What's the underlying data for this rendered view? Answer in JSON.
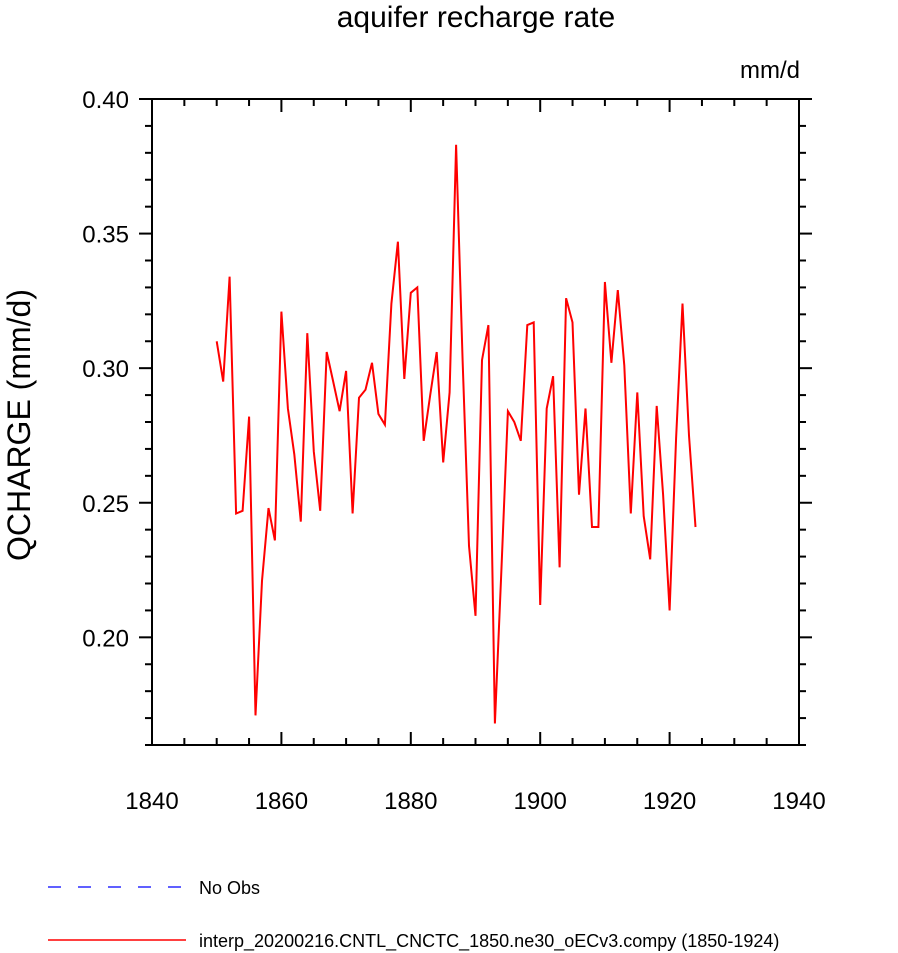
{
  "chart_data": {
    "type": "line",
    "title": "aquifer recharge rate",
    "units": "mm/d",
    "xlabel": "",
    "ylabel": "QCHARGE  (mm/d)",
    "xlim": [
      1840,
      1940
    ],
    "ylim": [
      0.16,
      0.4
    ],
    "xticks": [
      1840,
      1860,
      1880,
      1900,
      1920,
      1940
    ],
    "xtick_labels": [
      "1840",
      "1860",
      "1880",
      "1900",
      "1920",
      "1940"
    ],
    "yticks": [
      0.2,
      0.25,
      0.3,
      0.35,
      0.4
    ],
    "ytick_labels": [
      "0.20",
      "0.25",
      "0.30",
      "0.35",
      "0.40"
    ],
    "grid": false,
    "legend_position": "bottom",
    "legend": [
      {
        "label": "No Obs",
        "color": "#0000ff",
        "style": "dashed"
      },
      {
        "label": "interp_20200216.CNTL_CNCTC_1850.ne30_oECv3.compy (1850-1924)",
        "color": "#ff0000",
        "style": "solid"
      }
    ],
    "series": [
      {
        "name": "interp_20200216.CNTL_CNCTC_1850.ne30_oECv3.compy (1850-1924)",
        "color": "#ff0000",
        "x": [
          1850,
          1851,
          1852,
          1853,
          1854,
          1855,
          1856,
          1857,
          1858,
          1859,
          1860,
          1861,
          1862,
          1863,
          1864,
          1865,
          1866,
          1867,
          1868,
          1869,
          1870,
          1871,
          1872,
          1873,
          1874,
          1875,
          1876,
          1877,
          1878,
          1879,
          1880,
          1881,
          1882,
          1883,
          1884,
          1885,
          1886,
          1887,
          1888,
          1889,
          1890,
          1891,
          1892,
          1893,
          1894,
          1895,
          1896,
          1897,
          1898,
          1899,
          1900,
          1901,
          1902,
          1903,
          1904,
          1905,
          1906,
          1907,
          1908,
          1909,
          1910,
          1911,
          1912,
          1913,
          1914,
          1915,
          1916,
          1917,
          1918,
          1919,
          1920,
          1921,
          1922,
          1923,
          1924
        ],
        "y": [
          0.31,
          0.295,
          0.334,
          0.246,
          0.247,
          0.282,
          0.171,
          0.221,
          0.248,
          0.236,
          0.321,
          0.285,
          0.268,
          0.243,
          0.313,
          0.269,
          0.247,
          0.306,
          0.295,
          0.284,
          0.299,
          0.246,
          0.289,
          0.292,
          0.302,
          0.283,
          0.279,
          0.324,
          0.347,
          0.296,
          0.328,
          0.33,
          0.273,
          0.29,
          0.306,
          0.265,
          0.291,
          0.383,
          0.303,
          0.234,
          0.208,
          0.303,
          0.316,
          0.168,
          0.225,
          0.284,
          0.28,
          0.273,
          0.316,
          0.317,
          0.212,
          0.285,
          0.297,
          0.226,
          0.326,
          0.317,
          0.253,
          0.285,
          0.241,
          0.241,
          0.332,
          0.302,
          0.329,
          0.301,
          0.246,
          0.291,
          0.245,
          0.229,
          0.286,
          0.253,
          0.21,
          0.274,
          0.324,
          0.275,
          0.241
        ]
      }
    ]
  }
}
